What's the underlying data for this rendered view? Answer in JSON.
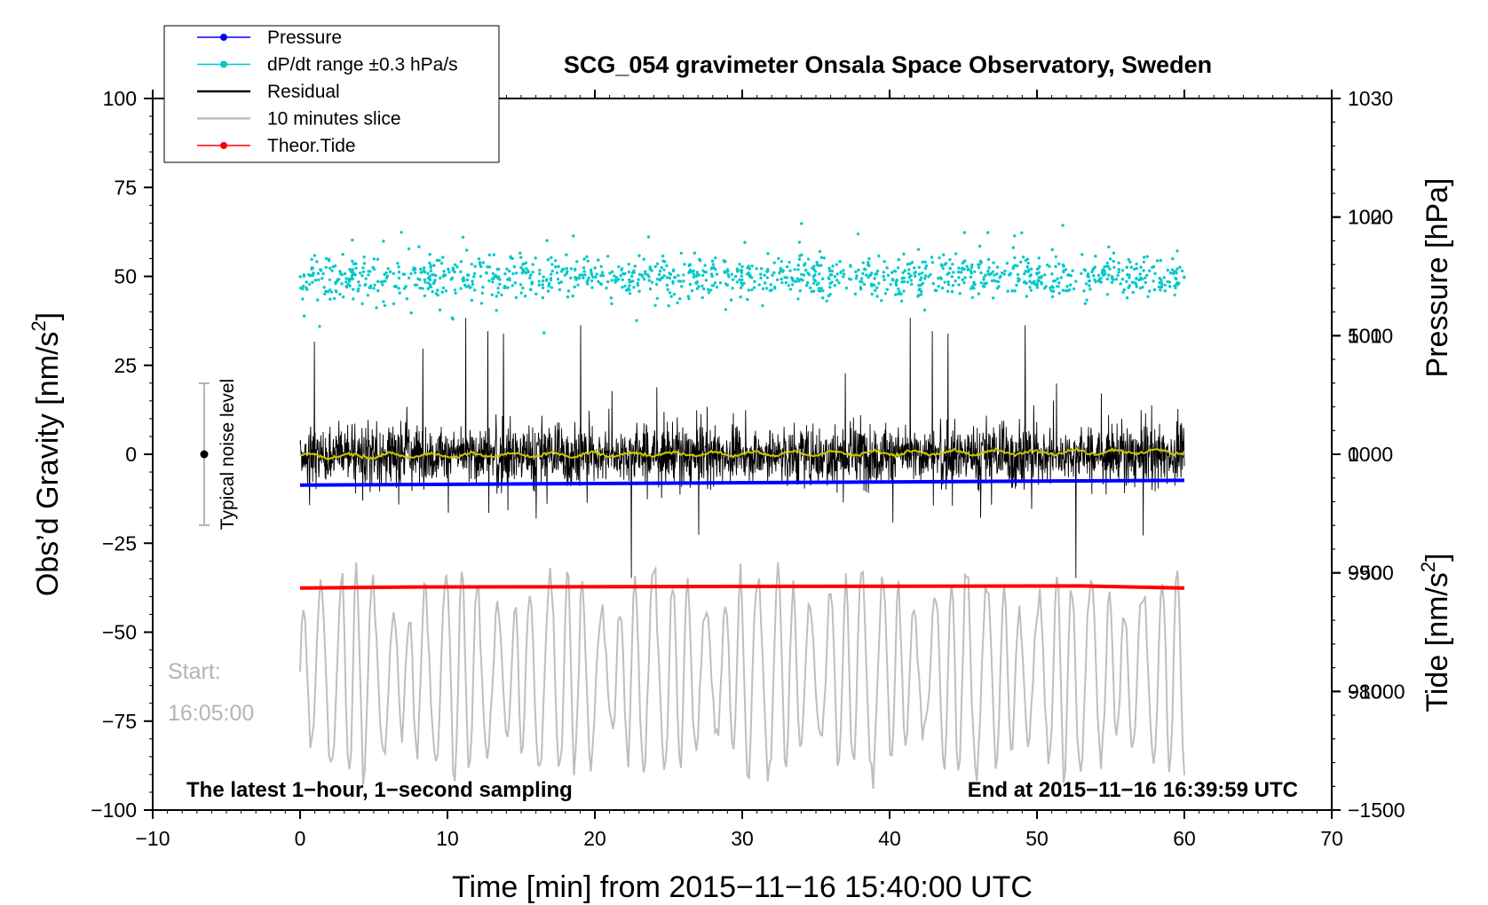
{
  "chart_data": {
    "type": "line",
    "title": "SCG_054 gravimeter Onsala Space Observatory, Sweden",
    "xlabel": "Time [min] from 2015−11−16 15:40:00 UTC",
    "ylabel_left": "Obs’d Gravity [nm/s²]",
    "ylabel_left_base": "Obs’d Gravity [nm/s",
    "ylabel_left_sup": "2",
    "ylabel_left_end": "]",
    "ylabel_right_pressure": "Pressure [hPa]",
    "ylabel_right_tide": "Tide [nm/s²]",
    "ylabel_right_tide_base": "Tide [nm/s",
    "ylabel_right_tide_sup": "2",
    "ylabel_right_tide_end": "]",
    "xlim": [
      -10,
      70
    ],
    "ylim_left": [
      -100,
      100
    ],
    "ylim_pressure": [
      970,
      1030
    ],
    "ylim_tide": [
      -1500,
      1500
    ],
    "x_ticks": [
      "−10",
      "0",
      "10",
      "20",
      "30",
      "40",
      "50",
      "60",
      "70"
    ],
    "x_tick_values": [
      -10,
      0,
      10,
      20,
      30,
      40,
      50,
      60,
      70
    ],
    "y_left_ticks": [
      "100",
      "75",
      "50",
      "25",
      "0",
      "−25",
      "−50",
      "−75",
      "−100"
    ],
    "y_left_tick_values": [
      100,
      75,
      50,
      25,
      0,
      -25,
      -50,
      -75,
      -100
    ],
    "y_pressure_ticks": [
      "1030",
      "1020",
      "1010",
      "1000",
      "990",
      "980"
    ],
    "y_pressure_tick_values": [
      1030,
      1020,
      1010,
      1000,
      990,
      980
    ],
    "y_tide_ticks": [
      "1000",
      "500",
      "0",
      "−500",
      "−1000",
      "−1500"
    ],
    "y_tide_tick_values": [
      1000,
      500,
      0,
      -500,
      -1000,
      -1500
    ],
    "legend": [
      {
        "label": "Pressure",
        "color": "#0000ff",
        "marker": true
      },
      {
        "label": "dP/dt range ±0.3 hPa/s",
        "color": "#00c8c8",
        "marker": true
      },
      {
        "label": "Residual",
        "color": "#000000",
        "marker": false
      },
      {
        "label": "10 minutes slice",
        "color": "#bebebe",
        "marker": false
      },
      {
        "label": "Theor.Tide",
        "color": "#ff0000",
        "marker": true
      }
    ],
    "series": [
      {
        "name": "Pressure",
        "axis": "pressure",
        "x": [
          0,
          60
        ],
        "values": [
          997.4,
          997.8
        ]
      },
      {
        "name": "dP/dt range ±0.3 hPa/s",
        "axis": "gravity",
        "center": 50,
        "spread": 6
      },
      {
        "name": "Residual",
        "axis": "gravity",
        "center": 0,
        "amplitude": 25
      },
      {
        "name": "Residual running mean",
        "axis": "gravity",
        "x": [
          0,
          60
        ],
        "values": [
          -0.5,
          0.8
        ]
      },
      {
        "name": "Theor.Tide",
        "axis": "gravity",
        "x": [
          0,
          7.5,
          53,
          60
        ],
        "values": [
          -37.6,
          -37.3,
          -37.0,
          -37.6
        ]
      },
      {
        "name": "10 minutes slice",
        "axis": "gravity",
        "x": [
          0,
          60
        ],
        "center": -62,
        "amplitude": 25
      }
    ],
    "noise_bar": {
      "label": "Typical noise level",
      "x": -7,
      "center": 0,
      "half_range": 20
    },
    "annotations": {
      "left_note": "The latest 1−hour, 1−second sampling",
      "right_note": "End at 2015−11−16 16:39:59 UTC",
      "start_label": "Start:",
      "start_time": "16:05:00"
    }
  }
}
